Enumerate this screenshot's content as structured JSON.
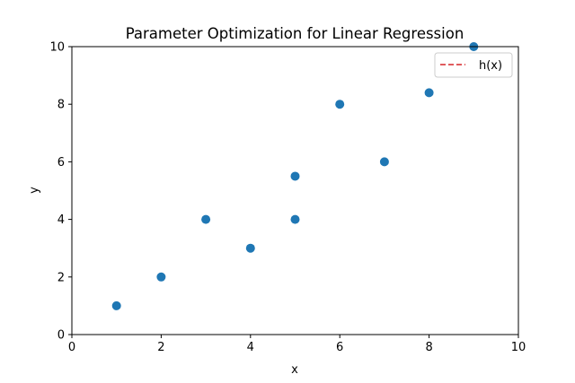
{
  "chart_data": {
    "type": "scatter",
    "title": "Parameter Optimization for Linear Regression",
    "xlabel": "x",
    "ylabel": "y",
    "xlim": [
      0,
      10
    ],
    "ylim": [
      0,
      10
    ],
    "xticks": [
      "0",
      "2",
      "4",
      "6",
      "8",
      "10"
    ],
    "yticks": [
      "0",
      "2",
      "4",
      "6",
      "8",
      "10"
    ],
    "grid": false,
    "legend_placement": "top-right",
    "legend": [
      {
        "label": "h(x)",
        "style": "dashed-line",
        "color": "#d62728"
      }
    ],
    "series": [
      {
        "marker": "circle",
        "color": "#1f77b4",
        "points": [
          {
            "x": 1,
            "y": 1
          },
          {
            "x": 2,
            "y": 2
          },
          {
            "x": 3,
            "y": 4
          },
          {
            "x": 4,
            "y": 3
          },
          {
            "x": 5,
            "y": 4
          },
          {
            "x": 5,
            "y": 5.5
          },
          {
            "x": 6,
            "y": 8
          },
          {
            "x": 7,
            "y": 6
          },
          {
            "x": 8,
            "y": 8.4
          },
          {
            "x": 9,
            "y": 10
          }
        ]
      }
    ]
  }
}
